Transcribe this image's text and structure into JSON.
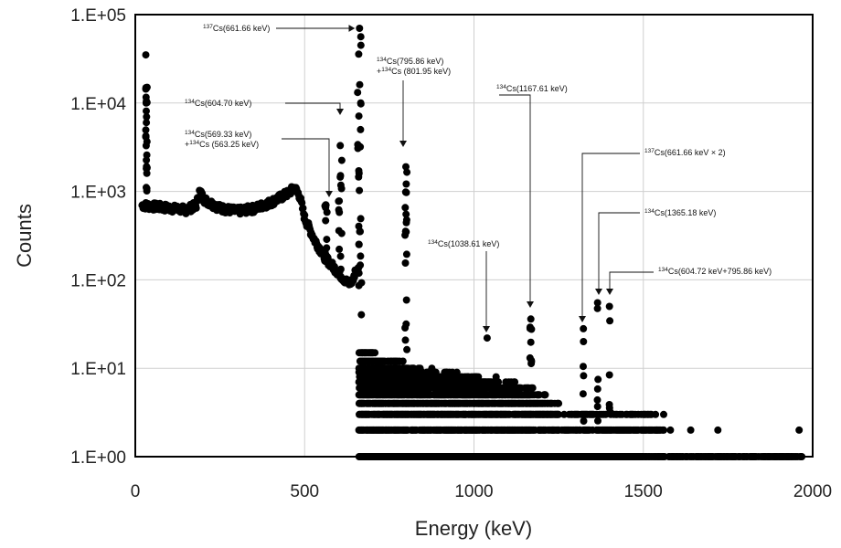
{
  "chart_data": {
    "type": "scatter",
    "title": "",
    "xlabel": "Energy (keV)",
    "ylabel": "Counts",
    "xlim": [
      0,
      2000
    ],
    "ylim": [
      1,
      100000
    ],
    "yscale": "log",
    "grid": true,
    "legend": "none",
    "marker_color": "#000000",
    "x_ticks": [
      {
        "value": 0,
        "label": "0"
      },
      {
        "value": 500,
        "label": "500"
      },
      {
        "value": 1000,
        "label": "1000"
      },
      {
        "value": 1500,
        "label": "1500"
      },
      {
        "value": 2000,
        "label": "2000"
      }
    ],
    "y_ticks": [
      {
        "value": 1,
        "label": "1.E+00"
      },
      {
        "value": 10,
        "label": "1.E+01"
      },
      {
        "value": 100,
        "label": "1.E+02"
      },
      {
        "value": 1000,
        "label": "1.E+03"
      },
      {
        "value": 10000,
        "label": "1.E+04"
      },
      {
        "value": 100000,
        "label": "1.E+05"
      }
    ],
    "continuum": [
      [
        20,
        700
      ],
      [
        50,
        680
      ],
      [
        100,
        650
      ],
      [
        150,
        620
      ],
      [
        180,
        700
      ],
      [
        190,
        1000
      ],
      [
        205,
        800
      ],
      [
        250,
        650
      ],
      [
        300,
        600
      ],
      [
        350,
        640
      ],
      [
        400,
        750
      ],
      [
        450,
        950
      ],
      [
        470,
        1100
      ],
      [
        485,
        900
      ],
      [
        500,
        500
      ],
      [
        530,
        280
      ],
      [
        560,
        180
      ],
      [
        600,
        120
      ],
      [
        630,
        90
      ],
      [
        645,
        100
      ],
      [
        650,
        140
      ]
    ],
    "tail": [
      [
        650,
        150
      ],
      [
        658,
        300
      ],
      [
        670,
        40
      ],
      [
        690,
        28
      ],
      [
        710,
        15
      ],
      [
        760,
        12
      ],
      [
        850,
        9
      ],
      [
        950,
        8
      ],
      [
        1050,
        7.5
      ],
      [
        1150,
        6
      ],
      [
        1200,
        5
      ],
      [
        1250,
        4
      ]
    ],
    "peaks": [
      {
        "x": 31,
        "y": 35000
      },
      {
        "x": 32,
        "y": 10000
      },
      {
        "x": 34,
        "y": 1600
      },
      {
        "x": 563,
        "y": 700
      },
      {
        "x": 605,
        "y": 3300
      },
      {
        "x": 662,
        "y": 70000
      },
      {
        "x": 665,
        "y": 5000
      },
      {
        "x": 799,
        "y": 1900
      },
      {
        "x": 1039,
        "y": 22
      },
      {
        "x": 1168,
        "y": 36
      },
      {
        "x": 1323,
        "y": 28
      },
      {
        "x": 1365,
        "y": 55
      },
      {
        "x": 1400,
        "y": 50
      }
    ],
    "baseline": {
      "y": 1,
      "x_start": 720,
      "x_end": 1970
    },
    "sparse_points": [
      [
        1520,
        3
      ],
      [
        1540,
        2
      ],
      [
        1580,
        2
      ],
      [
        1640,
        2
      ],
      [
        1720,
        2
      ],
      [
        1960,
        2
      ]
    ],
    "annotations": [
      {
        "sup": "137",
        "text": "Cs(661.66 keV)",
        "x": 662,
        "y": 70000
      },
      {
        "sup": "134",
        "text": "Cs(795.86 keV)",
        "sup2": "134",
        "text2": "Cs (801.95 keV)",
        "plus2": "+",
        "x": 799,
        "y": 1900
      },
      {
        "sup": "134",
        "text": "Cs(604.70 keV)",
        "x": 605,
        "y": 3300
      },
      {
        "sup": "134",
        "text": "Cs(569.33 keV)",
        "sup2": "134",
        "text2": "Cs (563.25 keV)",
        "plus2": "+",
        "x": 563,
        "y": 700
      },
      {
        "sup": "134",
        "text": "Cs(1167.61 keV)",
        "x": 1168,
        "y": 36
      },
      {
        "sup": "137",
        "text": "Cs(661.66 keV × 2)",
        "x": 1323,
        "y": 28
      },
      {
        "sup": "134",
        "text": "Cs(1038.61 keV)",
        "x": 1039,
        "y": 22
      },
      {
        "sup": "134",
        "text": "Cs(1365.18 keV)",
        "x": 1365,
        "y": 55
      },
      {
        "sup": "134",
        "text": "Cs(604.72 keV+795.86 keV)",
        "x": 1400,
        "y": 50
      }
    ]
  }
}
